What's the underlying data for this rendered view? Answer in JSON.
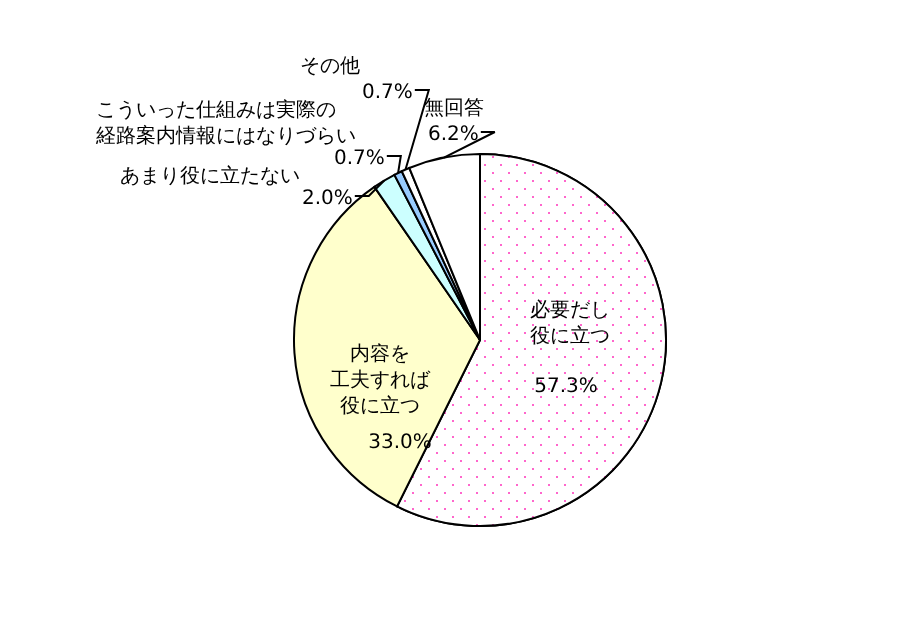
{
  "chart_data": {
    "type": "pie",
    "categories": [
      "必要だし役に立つ",
      "内容を工夫すれば役に立つ",
      "あまり役に立たない",
      "こういった仕組みは実際の経路案内情報にはなりづらい",
      "その他",
      "無回答"
    ],
    "values": [
      57.3,
      33.0,
      2.0,
      0.7,
      0.7,
      6.2
    ],
    "value_labels": [
      "57.3%",
      "33.0%",
      "2.0%",
      "0.7%",
      "0.7%",
      "6.2%"
    ],
    "colors": [
      "#ffffff",
      "#ffffcc",
      "#ccffff",
      "#99ccff",
      "#ffffff",
      "#ffffff"
    ]
  }
}
